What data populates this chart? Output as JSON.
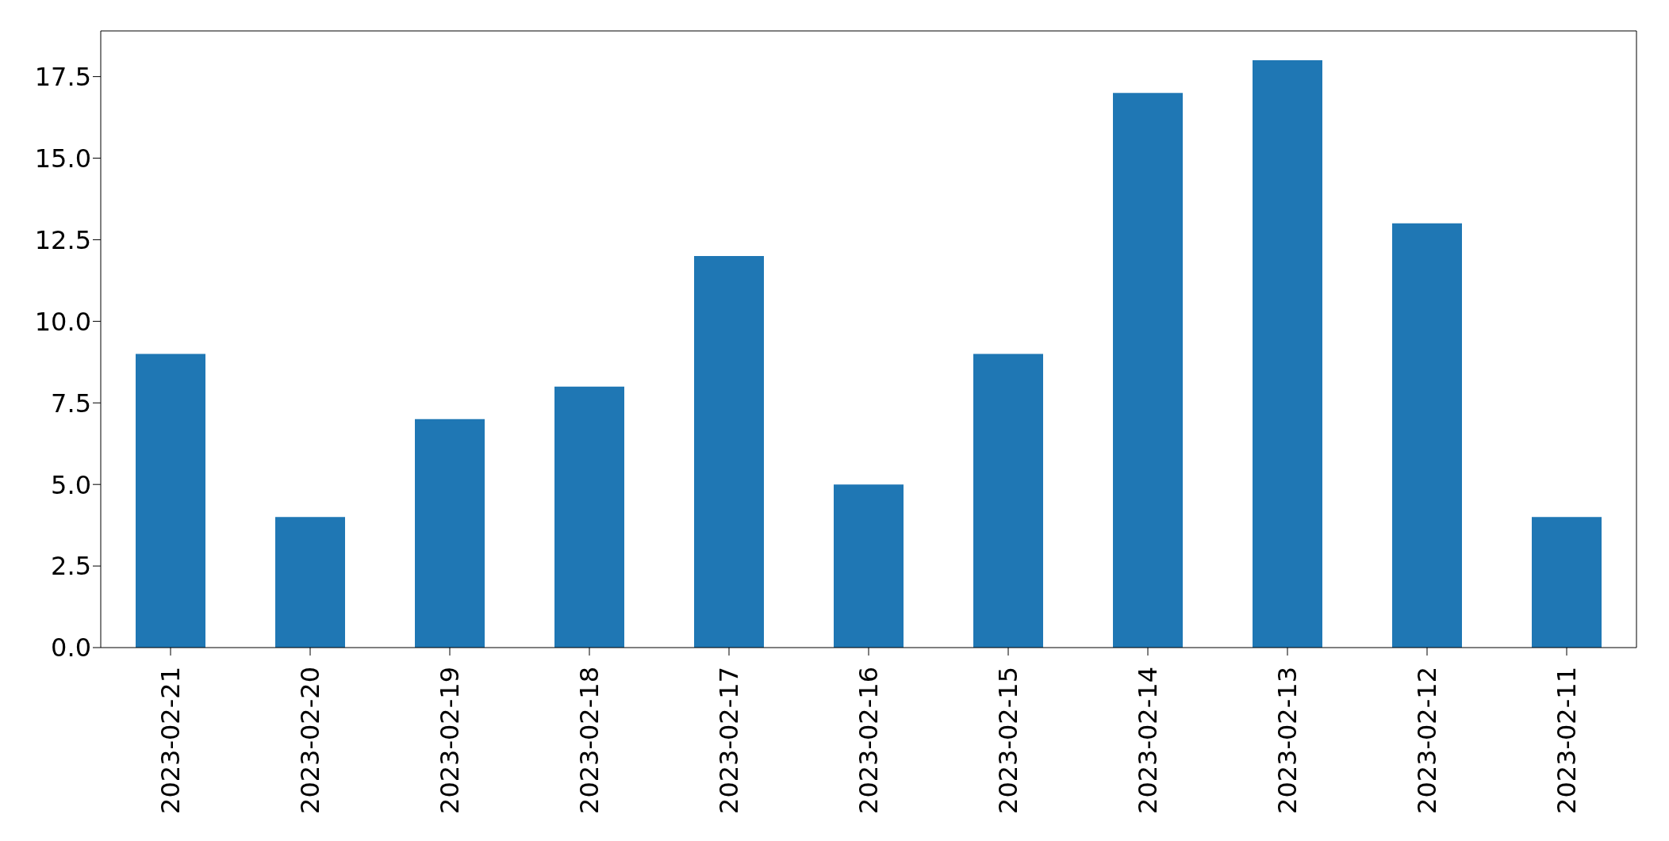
{
  "chart_data": {
    "type": "bar",
    "categories": [
      "2023-02-21",
      "2023-02-20",
      "2023-02-19",
      "2023-02-18",
      "2023-02-17",
      "2023-02-16",
      "2023-02-15",
      "2023-02-14",
      "2023-02-13",
      "2023-02-12",
      "2023-02-11"
    ],
    "values": [
      9,
      4,
      7,
      8,
      12,
      5,
      9,
      17,
      18,
      13,
      4
    ],
    "color": "#1f77b4",
    "ylim": [
      0,
      18.9
    ],
    "yticks": [
      {
        "value": 0,
        "label": "0.0"
      },
      2.5,
      {
        "value": 5,
        "label": "5.0"
      },
      7.5,
      {
        "value": 10,
        "label": "10.0"
      },
      12.5,
      {
        "value": 15,
        "label": "15.0"
      },
      17.5
    ],
    "grid": false
  }
}
